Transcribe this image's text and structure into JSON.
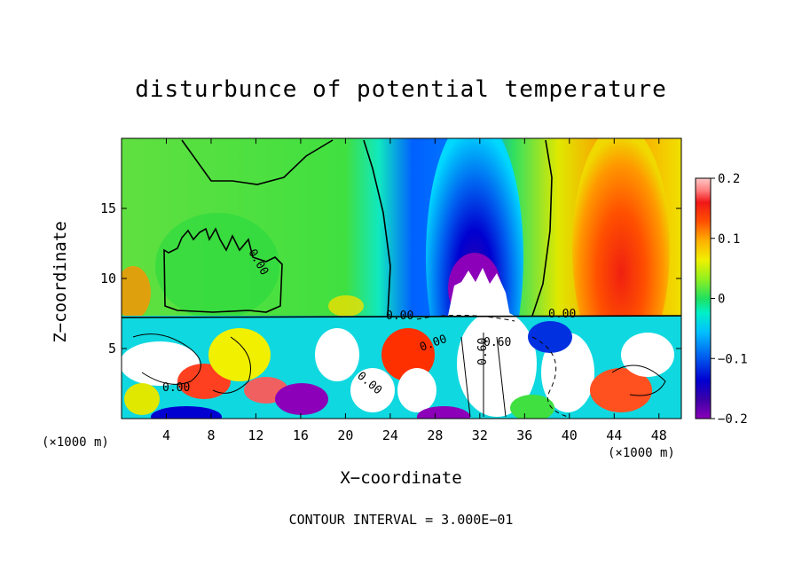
{
  "chart_data": {
    "type": "heatmap",
    "title": "disturbunce of potential temperature",
    "xlabel": "X−coordinate",
    "ylabel": "Z−coordinate",
    "x_unit_left": "(×1000 m)",
    "x_unit_right": "(×1000 m)",
    "xlim": [
      0,
      50
    ],
    "ylim": [
      0,
      20
    ],
    "x_ticks": [
      4,
      8,
      12,
      16,
      20,
      24,
      28,
      32,
      36,
      40,
      44,
      48
    ],
    "y_ticks": [
      5,
      10,
      15
    ],
    "colorbar": {
      "range": [
        -0.2,
        0.2
      ],
      "tick_labels": [
        "0.2",
        "0.1",
        "0",
        "−0.1",
        "−0.2"
      ],
      "tick_values": [
        0.2,
        0.1,
        0,
        -0.1,
        -0.2
      ],
      "colors": [
        "#8b00b8",
        "#3b00a8",
        "#0000d0",
        "#0050f0",
        "#0098ff",
        "#00d8ff",
        "#00f0c8",
        "#00e070",
        "#40f040",
        "#90f020",
        "#d8f000",
        "#f8e000",
        "#ffb000",
        "#ff7000",
        "#ff3800",
        "#f01818",
        "#ff8080",
        "#ffc8c8"
      ]
    },
    "contour_labels": [
      "0.00",
      "0.00",
      "0.00",
      "0.00",
      "0.00",
      "0.00",
      "0.60",
      "0.60"
    ],
    "grid": false,
    "legend": "colorbar-right"
  },
  "footer": "CONTOUR INTERVAL = 3.000E−01"
}
